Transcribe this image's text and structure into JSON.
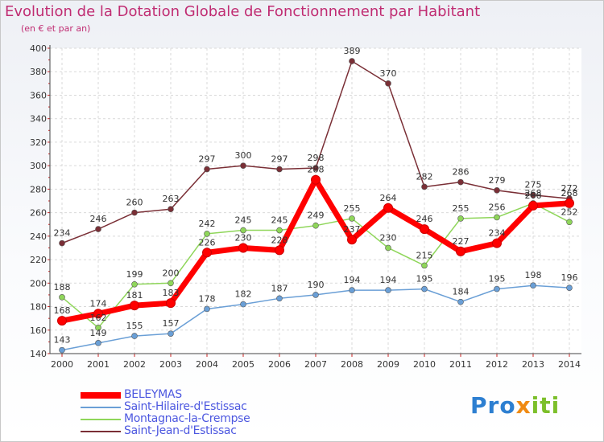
{
  "title": "Evolution de la Dotation Globale de Fonctionnement par Habitant",
  "subtitle": "(en € et par an)",
  "logo": {
    "part1": "Pro",
    "part2": "x",
    "part3": "iti"
  },
  "colors": {
    "title": "#c02c72",
    "legend_text": "#4d58e0",
    "BELEYMAS": "#ff0000",
    "Saint-Hilaire-d'Estissac": "#6a9fd6",
    "Montagnac-la-Crempse": "#8fd65a",
    "Saint-Jean-d'Estissac": "#7a2f36"
  },
  "chart_data": {
    "type": "line",
    "title": "Evolution de la Dotation Globale de Fonctionnement par Habitant",
    "subtitle": "(en € et par an)",
    "xlabel": "",
    "ylabel": "",
    "x": [
      "2000",
      "2001",
      "2002",
      "2003",
      "2004",
      "2005",
      "2006",
      "2007",
      "2008",
      "2009",
      "2010",
      "2011",
      "2012",
      "2013",
      "2014"
    ],
    "ylim": [
      140,
      400
    ],
    "yticks": [
      140,
      160,
      180,
      200,
      220,
      240,
      260,
      280,
      300,
      320,
      340,
      360,
      380,
      400
    ],
    "grid": true,
    "legend_position": "bottom-left",
    "series": [
      {
        "name": "BELEYMAS",
        "values": [
          168,
          174,
          181,
          183,
          226,
          230,
          228,
          288,
          237,
          264,
          246,
          227,
          234,
          266,
          268
        ]
      },
      {
        "name": "Saint-Hilaire-d'Estissac",
        "values": [
          143,
          149,
          155,
          157,
          178,
          182,
          187,
          190,
          194,
          194,
          195,
          184,
          195,
          198,
          196
        ]
      },
      {
        "name": "Montagnac-la-Crempse",
        "values": [
          188,
          162,
          199,
          200,
          242,
          245,
          245,
          249,
          255,
          230,
          215,
          255,
          256,
          268,
          252
        ]
      },
      {
        "name": "Saint-Jean-d'Estissac",
        "values": [
          234,
          246,
          260,
          263,
          297,
          300,
          297,
          298,
          389,
          370,
          282,
          286,
          279,
          275,
          272
        ]
      }
    ]
  }
}
